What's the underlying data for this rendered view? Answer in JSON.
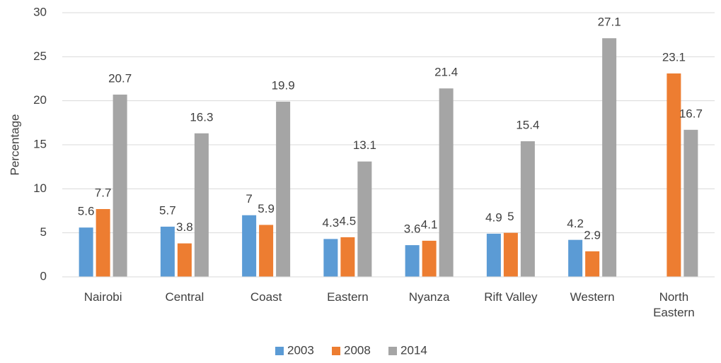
{
  "chart_data": {
    "type": "bar",
    "y_label": "Percentage",
    "categories": [
      "Nairobi",
      "Central",
      "Coast",
      "Eastern",
      "Nyanza",
      "Rift Valley",
      "Western",
      "North Eastern"
    ],
    "series": [
      {
        "name": "2003",
        "color": "#5b9bd5",
        "values": [
          5.6,
          5.7,
          7,
          4.3,
          3.6,
          4.9,
          4.2,
          null
        ]
      },
      {
        "name": "2008",
        "color": "#ed7d31",
        "values": [
          7.7,
          3.8,
          5.9,
          4.5,
          4.1,
          5,
          2.9,
          23.1
        ]
      },
      {
        "name": "2014",
        "color": "#a5a5a5",
        "values": [
          20.7,
          16.3,
          19.9,
          13.1,
          21.4,
          15.4,
          27.1,
          16.7
        ]
      }
    ],
    "ylim": [
      0,
      30
    ],
    "yticks": [
      0,
      5,
      10,
      15,
      20,
      25,
      30
    ],
    "grid": true,
    "legend": "bottom"
  }
}
